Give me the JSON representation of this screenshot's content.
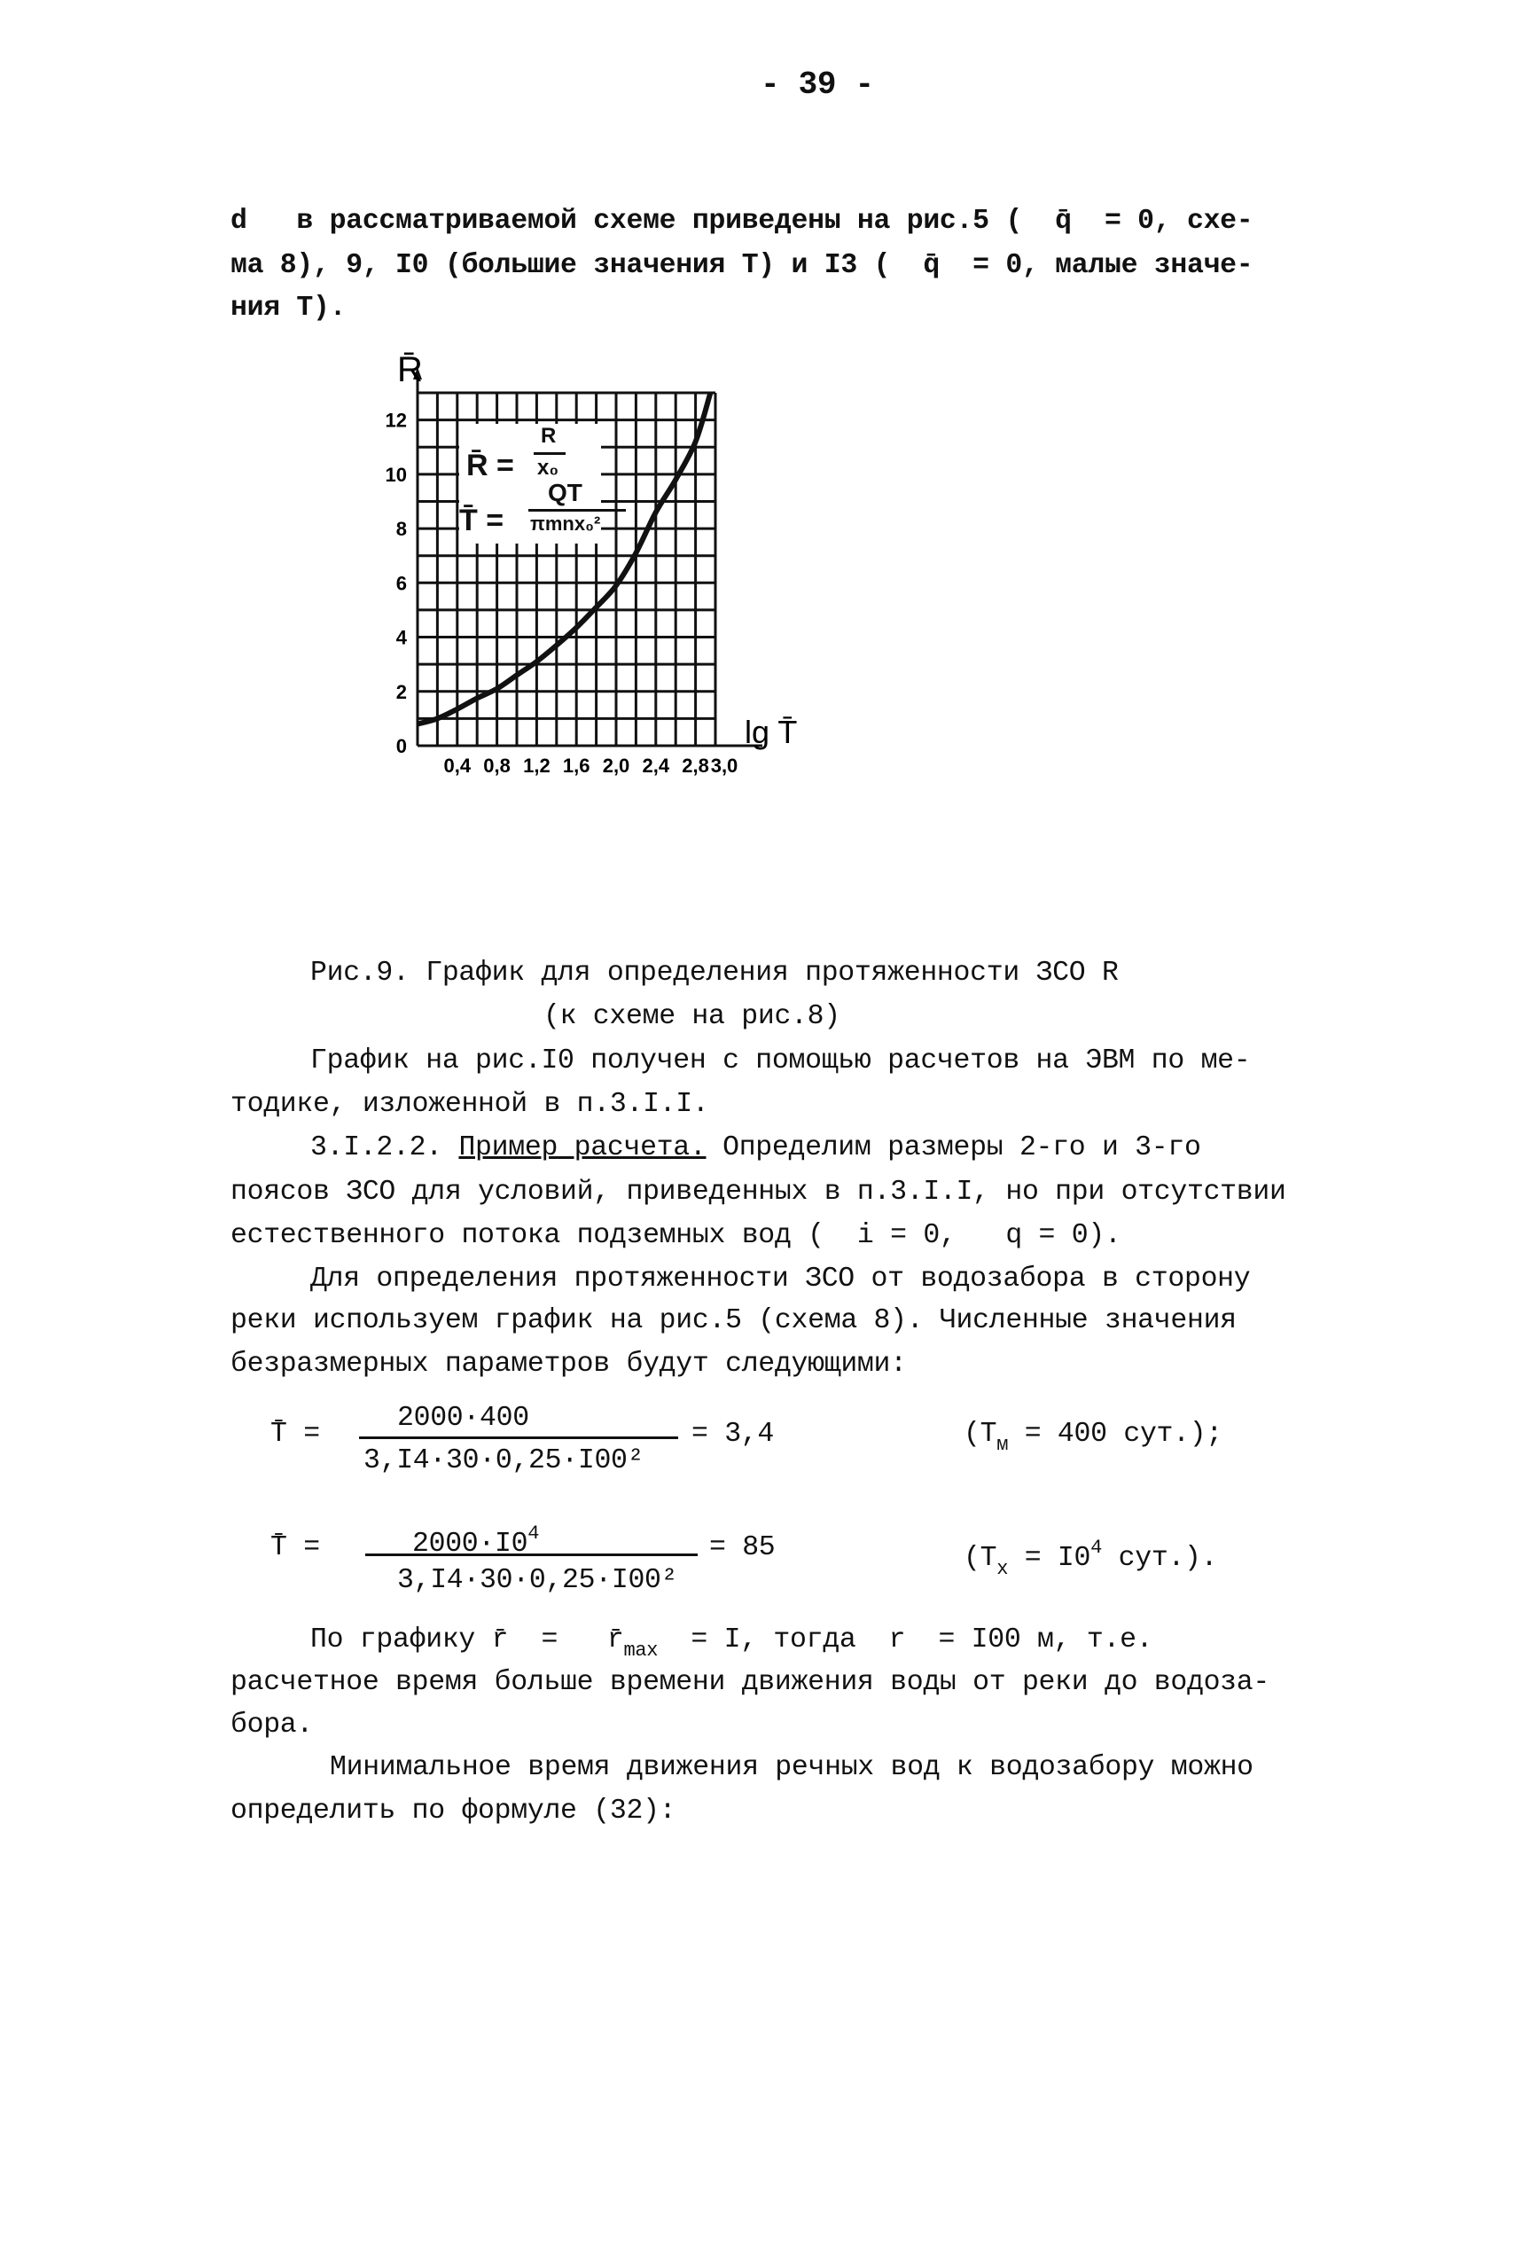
{
  "page_number": "- 39 -",
  "para1": [
    "d   в рассматриваемой схеме приведены на рис.5 (  q̄  = 0, схе-",
    "ма 8), 9, I0 (большие значения T) и I3 (  q̄  = 0, малые значе-",
    "ния T)."
  ],
  "caption": [
    "Рис.9. График для определения протяженности ЗСО R",
    "(к схеме на рис.8)"
  ],
  "para2": [
    "График на рис.I0 получен с помощью расчетов на ЭВМ по ме-",
    "тодике, изложенной в п.3.I.I."
  ],
  "para3": {
    "number": "3.I.2.2. ",
    "heading": "Пример расчета.",
    "rest": " Определим размеры 2-го и 3-го",
    "lines": [
      "поясов ЗСО для условий, приведенных в п.3.I.I, но при отсутствии",
      "естественного потока подземных вод (  i = 0,   q = 0)."
    ]
  },
  "para4": [
    "Для определения протяженности ЗСО от водозабора в сторону",
    "реки используем график на рис.5 (схема 8). Численные значения",
    "безразмерных параметров будут следующими:"
  ],
  "formula1": {
    "lhs": "T̄ =",
    "numerator": "2000·400",
    "denominator": "3,I4·30·0,25·I00²",
    "result": "= 3,4",
    "note_pre": "(T",
    "note_sub": "м",
    "note_post": " = 400 сут.);"
  },
  "formula2": {
    "lhs": "T̄ =",
    "numerator_base": "2000·I0",
    "numerator_exp": "4",
    "denominator": "3,I4·30·0,25·I00²",
    "result": "= 85",
    "note_pre": "(T",
    "note_sub": "x",
    "note_mid": " = I0",
    "note_exp": "4",
    "note_post": " сут.)."
  },
  "para5": {
    "l0_a": "По графику r̄  =   r̄",
    "l0_sub": "max",
    "l0_b": "  = I, тогда  r  = I00 м, т.е.",
    "lines": [
      "расчетное время больше времени движения воды от реки до водоза-",
      "бора."
    ]
  },
  "para6": [
    "Минимальное время движения речных вод к водозабору можно",
    "определить по формуле (32):"
  ],
  "chart_data": {
    "type": "line",
    "title": "",
    "xlabel": "lg T̄",
    "ylabel": "R̄",
    "xlim": [
      0,
      3.0
    ],
    "ylim": [
      0,
      13
    ],
    "grid": true,
    "x_tick_labels": [
      "0,4",
      "0,8",
      "1,2",
      "1,6",
      "2,0",
      "2,4",
      "2,8",
      "3,0"
    ],
    "x_ticks": [
      0.4,
      0.8,
      1.2,
      1.6,
      2.0,
      2.4,
      2.8,
      3.0
    ],
    "y_tick_labels": [
      "0",
      "2",
      "4",
      "6",
      "8",
      "10",
      "12"
    ],
    "y_ticks": [
      0,
      2,
      4,
      6,
      8,
      10,
      12
    ],
    "x": [
      0,
      0.2,
      0.4,
      0.6,
      0.8,
      1.0,
      1.2,
      1.4,
      1.6,
      1.8,
      2.0,
      2.2,
      2.4,
      2.6,
      2.8,
      2.95
    ],
    "y": [
      0.8,
      1.0,
      1.35,
      1.75,
      2.1,
      2.6,
      3.1,
      3.7,
      4.35,
      5.1,
      5.9,
      7.1,
      8.6,
      9.8,
      11.2,
      13.0
    ],
    "inset": {
      "r_lhs": "R̄ =",
      "r_num": "R",
      "r_den": "x₀",
      "t_lhs": "T̄ =",
      "t_num": "QT",
      "t_den": "πmnx₀²"
    }
  }
}
